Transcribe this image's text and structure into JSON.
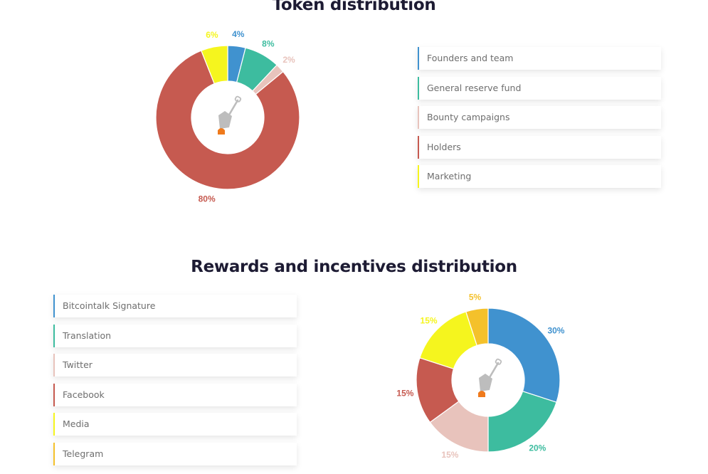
{
  "colors": {
    "blue": "#4092cf",
    "teal": "#3dbc9f",
    "pink": "#e8c3bc",
    "red": "#c65a50",
    "yellow": "#f5f51e",
    "orange": "#f4c12b"
  },
  "center_icon": "shovel-icon",
  "chart_data": [
    {
      "type": "pie",
      "title": "Token distribution",
      "labels": [
        "Founders and team",
        "General reserve fund",
        "Bounty campaigns",
        "Holders",
        "Marketing"
      ],
      "values": [
        4,
        8,
        2,
        80,
        6
      ],
      "value_labels": [
        "4%",
        "8%",
        "2%",
        "80%",
        "6%"
      ],
      "colors": [
        "#4092cf",
        "#3dbc9f",
        "#e8c3bc",
        "#c65a50",
        "#f5f51e"
      ],
      "donut": true,
      "legend_position": "right"
    },
    {
      "type": "pie",
      "title": "Rewards and incentives distribution",
      "labels": [
        "Bitcointalk Signature",
        "Translation",
        "Twitter",
        "Facebook",
        "Media",
        "Telegram"
      ],
      "values": [
        30,
        20,
        15,
        15,
        15,
        5
      ],
      "value_labels": [
        "30%",
        "20%",
        "15%",
        "15%",
        "15%",
        "5%"
      ],
      "colors": [
        "#4092cf",
        "#3dbc9f",
        "#e8c3bc",
        "#c65a50",
        "#f5f51e",
        "#f4c12b"
      ],
      "donut": true,
      "legend_position": "left"
    }
  ]
}
